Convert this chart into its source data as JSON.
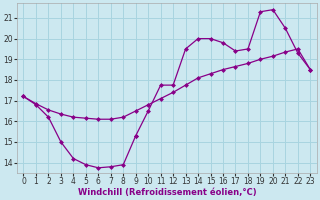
{
  "xlabel": "Windchill (Refroidissement éolien,°C)",
  "bg_color": "#cce8f0",
  "grid_color": "#a8d4e0",
  "line_color": "#880088",
  "xlim": [
    -0.5,
    23.5
  ],
  "ylim": [
    13.5,
    21.7
  ],
  "xticks": [
    0,
    1,
    2,
    3,
    4,
    5,
    6,
    7,
    8,
    9,
    10,
    11,
    12,
    13,
    14,
    15,
    16,
    17,
    18,
    19,
    20,
    21,
    22,
    23
  ],
  "yticks": [
    14,
    15,
    16,
    17,
    18,
    19,
    20,
    21
  ],
  "s1_x": [
    0,
    1,
    2,
    3,
    4,
    5,
    6,
    7,
    8,
    9
  ],
  "s1_y": [
    17.2,
    16.8,
    16.2,
    15.0,
    14.2,
    13.9,
    13.75,
    13.8,
    13.9,
    15.3
  ],
  "s2_x": [
    0,
    1,
    2,
    3,
    4,
    5,
    6,
    7,
    8,
    9,
    10,
    11,
    12,
    13,
    14,
    15,
    16,
    17,
    18,
    19,
    20,
    21,
    22,
    23
  ],
  "s2_y": [
    17.2,
    16.85,
    16.55,
    16.35,
    16.2,
    16.15,
    16.1,
    16.1,
    16.2,
    16.5,
    16.8,
    17.1,
    17.4,
    17.75,
    18.1,
    18.3,
    18.5,
    18.65,
    18.8,
    19.0,
    19.15,
    19.35,
    19.5,
    18.5
  ],
  "s3_x": [
    9,
    10,
    11,
    12,
    13,
    14,
    15,
    16,
    17,
    18,
    19,
    20,
    21,
    22,
    23
  ],
  "s3_y": [
    15.3,
    16.5,
    17.75,
    17.75,
    19.5,
    20.0,
    20.0,
    19.8,
    19.4,
    19.5,
    21.3,
    21.4,
    20.5,
    19.3,
    18.5
  ]
}
